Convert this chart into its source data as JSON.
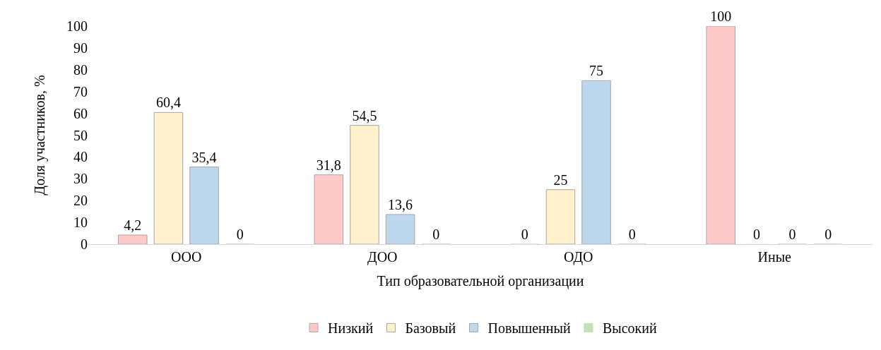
{
  "chart_data": {
    "type": "bar",
    "xlabel": "Тип образовательной организации",
    "ylabel": "Доля участников, %",
    "categories": [
      "ООО",
      "ДОО",
      "ОДО",
      "Иные"
    ],
    "series": [
      {
        "name": "Низкий",
        "color": "#ffc9c9",
        "values": [
          4.2,
          31.8,
          0,
          100
        ],
        "value_labels": [
          "4,2",
          "31,8",
          "0",
          "100"
        ]
      },
      {
        "name": "Базовый",
        "color": "#fff2cc",
        "values": [
          60.4,
          54.5,
          25,
          0
        ],
        "value_labels": [
          "60,4",
          "54,5",
          "25",
          "0"
        ]
      },
      {
        "name": "Повышенный",
        "color": "#bdd7ee",
        "values": [
          35.4,
          13.6,
          75,
          0
        ],
        "value_labels": [
          "35,4",
          "13,6",
          "75",
          "0"
        ]
      },
      {
        "name": "Высокий",
        "color": "#c5e0b4",
        "values": [
          0,
          0,
          0,
          0
        ],
        "value_labels": [
          "0",
          "0",
          "0",
          "0"
        ]
      }
    ],
    "ylim": [
      0,
      100
    ],
    "yticks": [
      0,
      10,
      20,
      30,
      40,
      50,
      60,
      70,
      80,
      90,
      100
    ],
    "legend": "bottom"
  }
}
